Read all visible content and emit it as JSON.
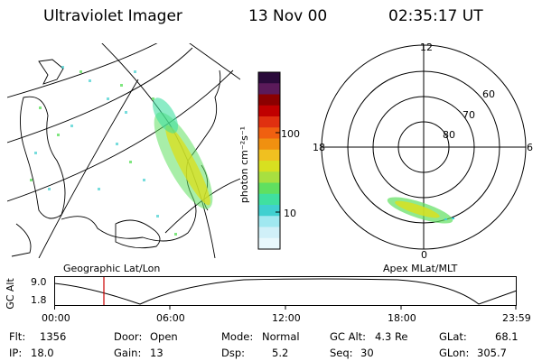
{
  "header": {
    "instrument": "Ultraviolet Imager",
    "date": "13 Nov 00",
    "time": "02:35:17 UT"
  },
  "panels": {
    "geo_label": "Geographic Lat/Lon",
    "apex_label": "Apex MLat/MLT"
  },
  "colorbar": {
    "unit_label": "photon cm⁻²s⁻¹",
    "scale": "log",
    "ticks": [
      "100",
      "10"
    ],
    "colors": [
      "#2a0a3a",
      "#5b1a5a",
      "#8b0000",
      "#c00000",
      "#e03010",
      "#f06010",
      "#f09010",
      "#f0c020",
      "#d8e020",
      "#a8e040",
      "#60e060",
      "#40e0a0",
      "#40d0d0",
      "#a0e8f0",
      "#d0f0f8",
      "#e8f8fc"
    ]
  },
  "polar": {
    "mlt_labels": {
      "top": "12",
      "left": "18",
      "right": "6",
      "bottom": "0"
    },
    "mlat_labels": [
      "60",
      "70",
      "80"
    ]
  },
  "timeline": {
    "ylabel": "GC Alt",
    "ytick_top": "9.0",
    "ytick_bottom": "1.8",
    "xticks": [
      "00:00",
      "06:00",
      "12:00",
      "18:00",
      "23:59"
    ],
    "marker_color": "#cc0000"
  },
  "info": {
    "flt_label": "Flt:",
    "flt_value": "1356",
    "ip_label": "IP:",
    "ip_value": "18.0",
    "door_label": "Door:",
    "door_value": "Open",
    "gain_label": "Gain:",
    "gain_value": "13",
    "mode_label": "Mode:",
    "mode_value": "Normal",
    "dsp_label": "Dsp:",
    "dsp_value": "5.2",
    "gcalt_label": "GC Alt:",
    "gcalt_value": "4.3 Re",
    "seq_label": "Seq:",
    "seq_value": "30",
    "glat_label": "GLat:",
    "glat_value": "68.1",
    "glon_label": "GLon:",
    "glon_value": "305.7"
  }
}
